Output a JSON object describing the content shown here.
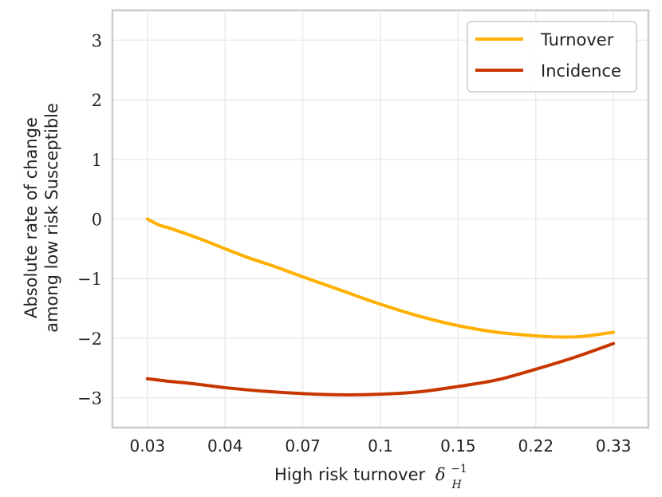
{
  "chart_data": {
    "type": "line",
    "title": "",
    "xlabel": "High risk turnover",
    "xlabel_symbol": "δ",
    "xlabel_sub": "H",
    "xlabel_sup": "−1",
    "ylabel_line1": "Absolute rate of change",
    "ylabel_line2": "among low risk Susceptible",
    "x_ticks": [
      "0.03",
      "0.04",
      "0.07",
      "0.1",
      "0.15",
      "0.22",
      "0.33"
    ],
    "x_tick_positions": [
      0,
      1,
      2,
      3,
      4,
      5,
      6
    ],
    "y_ticks": [
      3,
      2,
      1,
      0,
      -1,
      -2,
      -3
    ],
    "y_tick_labels": [
      "3",
      "2",
      "1",
      "0",
      "−1",
      "−2",
      "−3"
    ],
    "xlim": [
      -0.45,
      6.45
    ],
    "ylim": [
      -3.5,
      3.5
    ],
    "grid": true,
    "legend_position": "top-right",
    "series": [
      {
        "name": "Turnover",
        "color": "#FFB000",
        "x": [
          0,
          0.15,
          0.3,
          0.5,
          0.75,
          1.0,
          1.3,
          1.6,
          2.0,
          2.5,
          3.0,
          3.5,
          4.0,
          4.5,
          5.0,
          5.3,
          5.6,
          6.0
        ],
        "y": [
          0.0,
          -0.1,
          -0.16,
          -0.25,
          -0.37,
          -0.5,
          -0.65,
          -0.78,
          -0.97,
          -1.2,
          -1.43,
          -1.63,
          -1.79,
          -1.9,
          -1.96,
          -1.98,
          -1.97,
          -1.9
        ]
      },
      {
        "name": "Incidence",
        "color": "#C83600",
        "x": [
          0,
          0.25,
          0.5,
          0.75,
          1.0,
          1.5,
          2.0,
          2.5,
          3.0,
          3.5,
          4.0,
          4.5,
          5.0,
          5.5,
          6.0
        ],
        "y": [
          -2.68,
          -2.72,
          -2.75,
          -2.79,
          -2.83,
          -2.89,
          -2.93,
          -2.95,
          -2.94,
          -2.9,
          -2.81,
          -2.7,
          -2.52,
          -2.32,
          -2.09
        ]
      }
    ]
  }
}
